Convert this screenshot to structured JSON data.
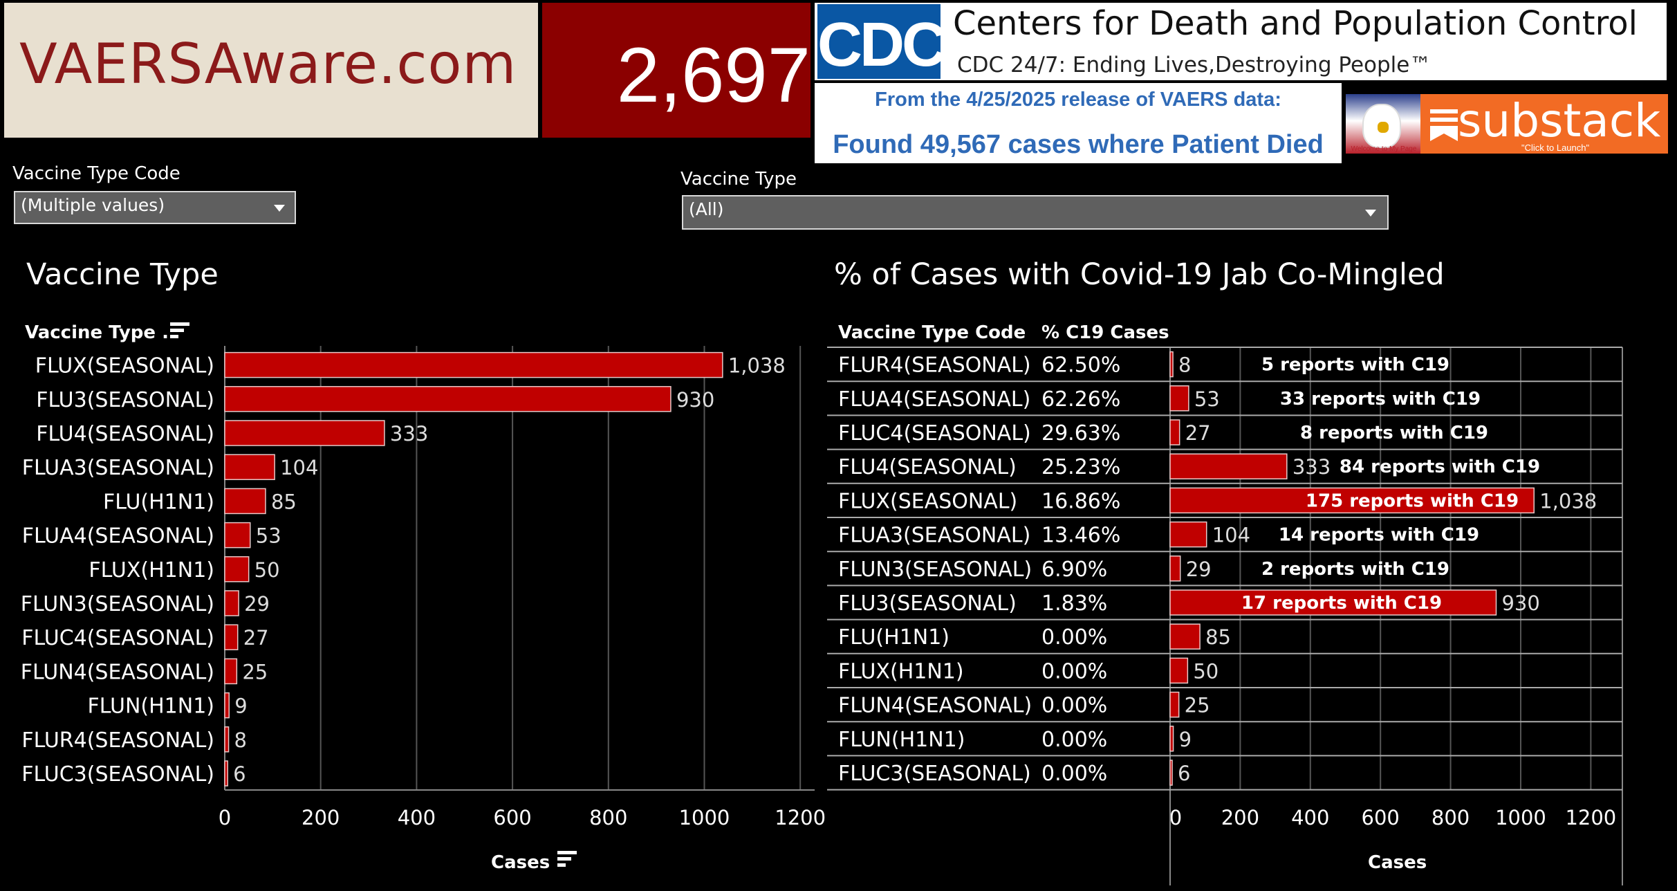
{
  "header": {
    "site_name": "VAERSAware.com",
    "count": "2,697",
    "cdc_logo_text": "CDC",
    "cdc_title": "Centers for Death and Population Control",
    "cdc_tagline": "CDC 24/7: Ending Lives,Destroying People™",
    "release_line": "From the 4/25/2025 release of VAERS data:",
    "found_line": "Found 49,567 cases where Patient Died",
    "eagle_caption": "Welcome to My Page",
    "substack_label": "substack",
    "substack_caption": "\"Click to Launch\""
  },
  "filters": {
    "vaccine_type_code": {
      "label": "Vaccine Type Code",
      "value": "(Multiple values)"
    },
    "vaccine_type": {
      "label": "Vaccine Type",
      "value": "(All)"
    }
  },
  "left_panel": {
    "title": "Vaccine Type",
    "row_header": "Vaccine Type ..",
    "axis_label": "Cases"
  },
  "right_panel": {
    "title": "% of Cases with Covid-19 Jab Co-Mingled",
    "col_code": "Vaccine Type Code",
    "col_pct": "% C19 Cases",
    "axis_label": "Cases"
  },
  "colors": {
    "bar": "#c00000",
    "bar_border": "#e8c8c8",
    "grid": "#555555"
  },
  "chart_data": [
    {
      "type": "bar",
      "orientation": "horizontal",
      "title": "Vaccine Type",
      "xlabel": "Cases",
      "categories": [
        "FLUX(SEASONAL)",
        "FLU3(SEASONAL)",
        "FLU4(SEASONAL)",
        "FLUA3(SEASONAL)",
        "FLU(H1N1)",
        "FLUA4(SEASONAL)",
        "FLUX(H1N1)",
        "FLUN3(SEASONAL)",
        "FLUC4(SEASONAL)",
        "FLUN4(SEASONAL)",
        "FLUN(H1N1)",
        "FLUR4(SEASONAL)",
        "FLUC3(SEASONAL)"
      ],
      "values": [
        1038,
        930,
        333,
        104,
        85,
        53,
        50,
        29,
        27,
        25,
        9,
        8,
        6
      ],
      "value_labels": [
        "1,038",
        "930",
        "333",
        "104",
        "85",
        "53",
        "50",
        "29",
        "27",
        "25",
        "9",
        "8",
        "6"
      ],
      "xticks": [
        0,
        200,
        400,
        600,
        800,
        1000,
        1200
      ],
      "xlim": [
        0,
        1230
      ],
      "grid": true
    },
    {
      "type": "table",
      "title": "% of Cases with Covid-19 Jab Co-Mingled",
      "xlabel": "Cases",
      "categories": [
        "FLUR4(SEASONAL)",
        "FLUA4(SEASONAL)",
        "FLUC4(SEASONAL)",
        "FLU4(SEASONAL)",
        "FLUX(SEASONAL)",
        "FLUA3(SEASONAL)",
        "FLUN3(SEASONAL)",
        "FLU3(SEASONAL)",
        "FLU(H1N1)",
        "FLUX(H1N1)",
        "FLUN4(SEASONAL)",
        "FLUN(H1N1)",
        "FLUC3(SEASONAL)"
      ],
      "pct_c19": [
        "62.50%",
        "62.26%",
        "29.63%",
        "25.23%",
        "16.86%",
        "13.46%",
        "6.90%",
        "1.83%",
        "0.00%",
        "0.00%",
        "0.00%",
        "0.00%",
        "0.00%"
      ],
      "values": [
        8,
        53,
        27,
        333,
        1038,
        104,
        29,
        930,
        85,
        50,
        25,
        9,
        6
      ],
      "value_labels": [
        "8",
        "53",
        "27",
        "333",
        "1,038",
        "104",
        "29",
        "930",
        "85",
        "50",
        "25",
        "9",
        "6"
      ],
      "annotations": [
        "5 reports with C19",
        "33 reports with C19",
        "8 reports with C19",
        "84 reports with C19",
        "175 reports with C19",
        "14 reports with C19",
        "2 reports with C19",
        "17 reports with C19",
        "",
        "",
        "",
        "",
        ""
      ],
      "xticks": [
        0,
        200,
        400,
        600,
        800,
        1000,
        1200
      ],
      "xlim": [
        0,
        1290
      ],
      "grid": true
    }
  ]
}
